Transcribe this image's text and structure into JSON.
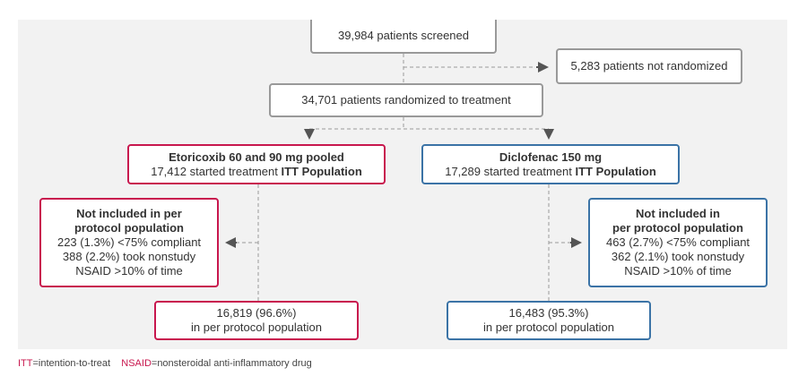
{
  "screened": "39,984 patients screened",
  "not_randomized": "5,283 patients not randomized",
  "randomized": "34,701 patients randomized to treatment",
  "etoricoxib": {
    "title": "Etoricoxib 60 and 90 mg pooled",
    "started": "17,412 started treatment",
    "itt": "ITT Population",
    "excluded": {
      "heading1": "Not included in  per",
      "heading2": "protocol population",
      "line1": "223 (1.3%) <75% compliant",
      "line2": "388 (2.2%) took nonstudy",
      "line3": "NSAID >10% of time"
    },
    "pp_count": "16,819 (96.6%)",
    "pp_label": "in per protocol population"
  },
  "diclofenac": {
    "title": "Diclofenac 150 mg",
    "started": "17,289 started treatment",
    "itt": "ITT Population",
    "excluded": {
      "heading1": "Not included in",
      "heading2": "per protocol population",
      "line1": "463 (2.7%) <75% compliant",
      "line2": "362 (2.1%) took nonstudy",
      "line3": "NSAID >10% of time"
    },
    "pp_count": "16,483 (95.3%)",
    "pp_label": "in per protocol population"
  },
  "footnote": {
    "itt_abbr": "ITT",
    "itt_def": "=intention-to-treat",
    "nsaid_abbr": "NSAID",
    "nsaid_def": "=nonsteroidal anti-inflammatory drug"
  },
  "colors": {
    "etoricoxib": "#c8174e",
    "diclofenac": "#3b73a6",
    "neutral": "#999999",
    "panel": "#f2f2f2"
  }
}
